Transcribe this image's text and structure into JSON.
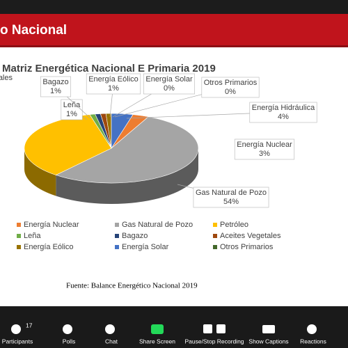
{
  "header": {
    "title": "o Nacional"
  },
  "chart_data": {
    "type": "pie",
    "title": "Matriz Energética Nacional E Primaria 2019",
    "categories": [
      "Energía Nuclear",
      "Gas Natural de Pozo",
      "Petróleo",
      "Leña",
      "Bagazo",
      "Aceites Vegetales",
      "Energía Eólico",
      "Energía Solar",
      "Otros Primarios",
      "Energía Hidráulica"
    ],
    "values": [
      3,
      54,
      35,
      1,
      1,
      1,
      1,
      0,
      0,
      4
    ],
    "value_labels": [
      "3%",
      "54%",
      null,
      "1%",
      "1%",
      null,
      "1%",
      "0%",
      "0%",
      "4%"
    ],
    "colors": [
      "#ed7d31",
      "#a5a5a5",
      "#ffc000",
      "#70ad47",
      "#264478",
      "#9e480e",
      "#997300",
      "#4472c4",
      "#43682b",
      "#4472c4"
    ],
    "in_legend": [
      true,
      true,
      true,
      true,
      true,
      true,
      true,
      true,
      true,
      false
    ],
    "source": "Fuente: Balance Energético Nacional 2019"
  },
  "toolbar": {
    "participants_count": "17",
    "items": [
      "Participants",
      "Polls",
      "Chat",
      "Share Screen",
      "Pause/Stop Recording",
      "Show Captions",
      "Reactions"
    ]
  }
}
